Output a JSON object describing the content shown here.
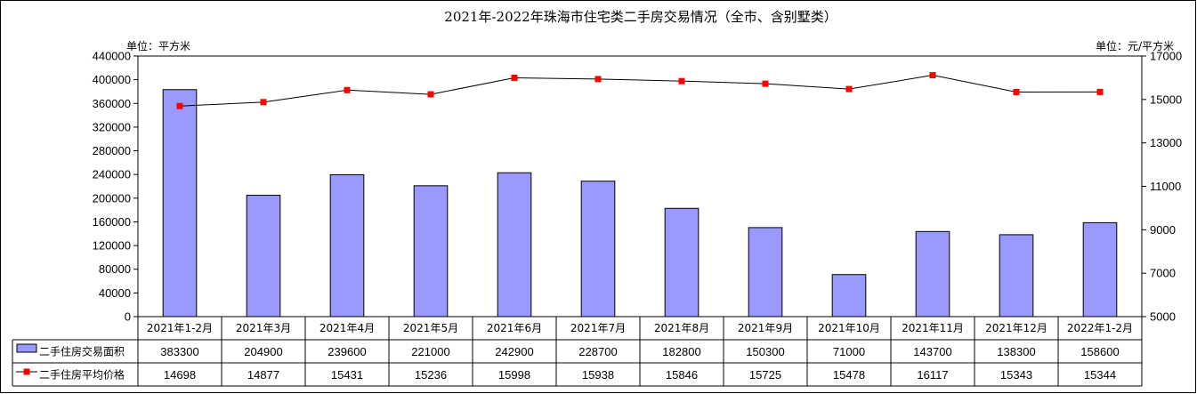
{
  "chart_data": {
    "type": "bar",
    "title": "2021年-2022年珠海市住宅类二手房交易情况（全市、含别墅类）",
    "left_unit": "单位：平方米",
    "right_unit": "单位：元/平方米",
    "categories": [
      "2021年1-2月",
      "2021年3月",
      "2021年4月",
      "2021年5月",
      "2021年6月",
      "2021年7月",
      "2021年8月",
      "2021年9月",
      "2021年10月",
      "2021年11月",
      "2021年12月",
      "2022年1-2月"
    ],
    "y_left": {
      "min": 0,
      "max": 440000,
      "step": 40000
    },
    "y_right": {
      "min": 5000,
      "max": 17000,
      "step": 2000
    },
    "grid": false,
    "legend": "table-bottom",
    "series": [
      {
        "name": "二手住房交易面积",
        "kind": "bar",
        "axis": "left",
        "color": "#9999ff",
        "values": [
          383300,
          204900,
          239600,
          221000,
          242900,
          228700,
          182800,
          150300,
          71000,
          143700,
          138300,
          158600
        ]
      },
      {
        "name": "二手住房平均价格",
        "kind": "line",
        "axis": "right",
        "color": "#ff0000",
        "values": [
          14698,
          14877,
          15431,
          15236,
          15998,
          15938,
          15846,
          15725,
          15478,
          16117,
          15343,
          15344
        ]
      }
    ]
  }
}
